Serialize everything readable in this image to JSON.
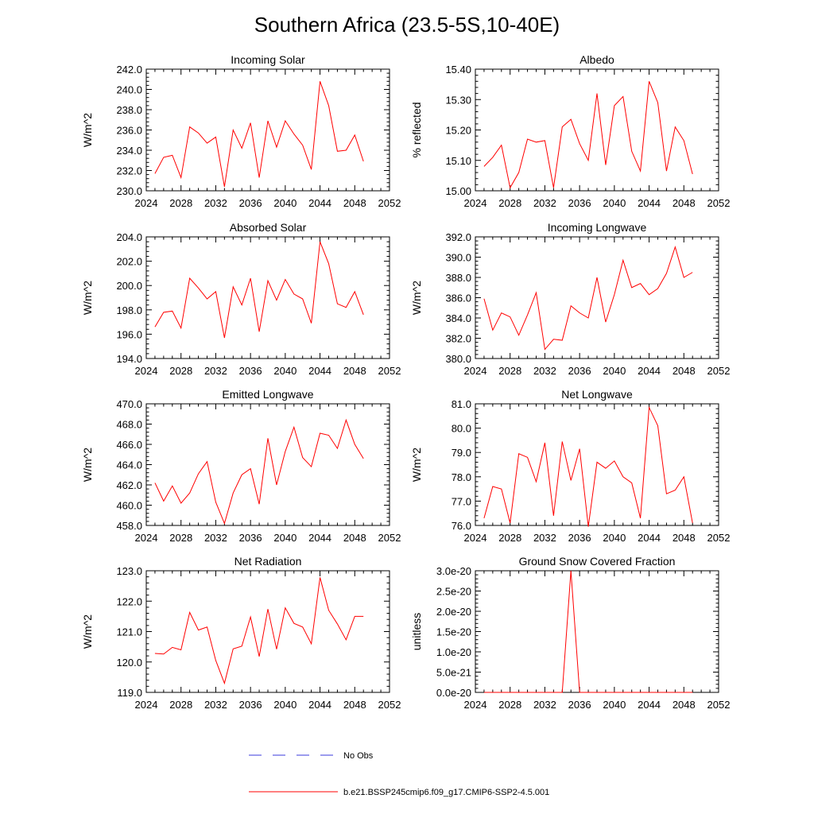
{
  "figure": {
    "title": "Southern Africa (23.5-5S,10-40E)",
    "legend": [
      {
        "label": "No Obs",
        "color": "#3a3adc",
        "style": "dashed"
      },
      {
        "label": "b.e21.BSSP245cmip6.f09_g17.CMIP6-SSP2-4.5.001",
        "color": "#ff0000",
        "style": "solid"
      }
    ]
  },
  "chart_data": [
    {
      "type": "line",
      "title": "Incoming Solar",
      "xlabel": "",
      "ylabel": "W/m^2",
      "xlim": [
        2024,
        2052
      ],
      "ylim": [
        230,
        242
      ],
      "xticks": [
        2024,
        2028,
        2032,
        2036,
        2040,
        2044,
        2048,
        2052
      ],
      "yticks": [
        230,
        232,
        234,
        236,
        238,
        240,
        242
      ],
      "ytick_labels": [
        "230.0",
        "232.0",
        "234.0",
        "236.0",
        "238.0",
        "240.0",
        "242.0"
      ],
      "series": [
        {
          "color": "#ff0000",
          "x": [
            2025,
            2026,
            2027,
            2028,
            2029,
            2030,
            2031,
            2032,
            2033,
            2034,
            2035,
            2036,
            2037,
            2038,
            2039,
            2040,
            2041,
            2042,
            2043,
            2044,
            2045,
            2046,
            2047,
            2048,
            2049
          ],
          "values": [
            231.7,
            233.3,
            233.5,
            231.3,
            236.3,
            235.7,
            234.7,
            235.3,
            230.4,
            236.0,
            234.2,
            236.7,
            231.3,
            236.9,
            234.3,
            236.9,
            235.6,
            234.5,
            232.1,
            240.8,
            238.4,
            233.9,
            234.0,
            235.5,
            232.9
          ]
        }
      ]
    },
    {
      "type": "line",
      "title": "Albedo",
      "xlabel": "",
      "ylabel": "% reflected",
      "xlim": [
        2024,
        2052
      ],
      "ylim": [
        15.0,
        15.4
      ],
      "xticks": [
        2024,
        2028,
        2032,
        2036,
        2040,
        2044,
        2048,
        2052
      ],
      "yticks": [
        15.0,
        15.1,
        15.2,
        15.3,
        15.4
      ],
      "ytick_labels": [
        "15.00",
        "15.10",
        "15.20",
        "15.30",
        "15.40"
      ],
      "series": [
        {
          "color": "#ff0000",
          "x": [
            2025,
            2026,
            2027,
            2028,
            2029,
            2030,
            2031,
            2032,
            2033,
            2034,
            2035,
            2036,
            2037,
            2038,
            2039,
            2040,
            2041,
            2042,
            2043,
            2044,
            2045,
            2046,
            2047,
            2048,
            2049
          ],
          "values": [
            15.08,
            15.11,
            15.15,
            15.01,
            15.06,
            15.17,
            15.16,
            15.165,
            15.01,
            15.21,
            15.235,
            15.155,
            15.1,
            15.32,
            15.085,
            15.28,
            15.31,
            15.13,
            15.065,
            15.36,
            15.29,
            15.065,
            15.21,
            15.165,
            15.055
          ]
        }
      ]
    },
    {
      "type": "line",
      "title": "Absorbed Solar",
      "xlabel": "",
      "ylabel": "W/m^2",
      "xlim": [
        2024,
        2052
      ],
      "ylim": [
        194,
        204
      ],
      "xticks": [
        2024,
        2028,
        2032,
        2036,
        2040,
        2044,
        2048,
        2052
      ],
      "yticks": [
        194,
        196,
        198,
        200,
        202,
        204
      ],
      "ytick_labels": [
        "194.0",
        "196.0",
        "198.0",
        "200.0",
        "202.0",
        "204.0"
      ],
      "series": [
        {
          "color": "#ff0000",
          "x": [
            2025,
            2026,
            2027,
            2028,
            2029,
            2030,
            2031,
            2032,
            2033,
            2034,
            2035,
            2036,
            2037,
            2038,
            2039,
            2040,
            2041,
            2042,
            2043,
            2044,
            2045,
            2046,
            2047,
            2048,
            2049
          ],
          "values": [
            196.6,
            197.8,
            197.9,
            196.5,
            200.6,
            199.8,
            198.9,
            199.5,
            195.7,
            199.9,
            198.4,
            200.6,
            196.2,
            200.4,
            198.8,
            200.5,
            199.3,
            198.9,
            196.9,
            203.6,
            201.8,
            198.5,
            198.2,
            199.5,
            197.6
          ]
        }
      ]
    },
    {
      "type": "line",
      "title": "Incoming Longwave",
      "xlabel": "",
      "ylabel": "W/m^2",
      "xlim": [
        2024,
        2052
      ],
      "ylim": [
        380,
        392
      ],
      "xticks": [
        2024,
        2028,
        2032,
        2036,
        2040,
        2044,
        2048,
        2052
      ],
      "yticks": [
        380,
        382,
        384,
        386,
        388,
        390,
        392
      ],
      "ytick_labels": [
        "380.0",
        "382.0",
        "384.0",
        "386.0",
        "388.0",
        "390.0",
        "392.0"
      ],
      "series": [
        {
          "color": "#ff0000",
          "x": [
            2025,
            2026,
            2027,
            2028,
            2029,
            2030,
            2031,
            2032,
            2033,
            2034,
            2035,
            2036,
            2037,
            2038,
            2039,
            2040,
            2041,
            2042,
            2043,
            2044,
            2045,
            2046,
            2047,
            2048,
            2049
          ],
          "values": [
            385.9,
            382.8,
            384.5,
            384.1,
            382.3,
            384.3,
            386.5,
            380.9,
            381.9,
            381.8,
            385.2,
            384.5,
            384.0,
            388.0,
            383.6,
            386.3,
            389.7,
            387.0,
            387.4,
            386.3,
            386.9,
            388.4,
            391.0,
            388.0,
            388.5
          ]
        }
      ]
    },
    {
      "type": "line",
      "title": "Emitted Longwave",
      "xlabel": "",
      "ylabel": "W/m^2",
      "xlim": [
        2024,
        2052
      ],
      "ylim": [
        458,
        470
      ],
      "xticks": [
        2024,
        2028,
        2032,
        2036,
        2040,
        2044,
        2048,
        2052
      ],
      "yticks": [
        458,
        460,
        462,
        464,
        466,
        468,
        470
      ],
      "ytick_labels": [
        "458.0",
        "460.0",
        "462.0",
        "464.0",
        "466.0",
        "468.0",
        "470.0"
      ],
      "series": [
        {
          "color": "#ff0000",
          "x": [
            2025,
            2026,
            2027,
            2028,
            2029,
            2030,
            2031,
            2032,
            2033,
            2034,
            2035,
            2036,
            2037,
            2038,
            2039,
            2040,
            2041,
            2042,
            2043,
            2044,
            2045,
            2046,
            2047,
            2048,
            2049
          ],
          "values": [
            462.2,
            460.4,
            461.9,
            460.2,
            461.2,
            463.1,
            464.3,
            460.3,
            458.2,
            461.2,
            463.0,
            463.6,
            460.1,
            466.6,
            462.0,
            465.3,
            467.7,
            464.7,
            463.8,
            467.1,
            466.9,
            465.6,
            468.4,
            466.0,
            464.6
          ]
        }
      ]
    },
    {
      "type": "line",
      "title": "Net Longwave",
      "xlabel": "",
      "ylabel": "W/m^2",
      "xlim": [
        2024,
        2052
      ],
      "ylim": [
        76,
        81
      ],
      "xticks": [
        2024,
        2028,
        2032,
        2036,
        2040,
        2044,
        2048,
        2052
      ],
      "yticks": [
        76,
        77,
        78,
        79,
        80,
        81
      ],
      "ytick_labels": [
        "76.0",
        "77.0",
        "78.0",
        "79.0",
        "80.0",
        "81.0"
      ],
      "series": [
        {
          "color": "#ff0000",
          "x": [
            2025,
            2026,
            2027,
            2028,
            2029,
            2030,
            2031,
            2032,
            2033,
            2034,
            2035,
            2036,
            2037,
            2038,
            2039,
            2040,
            2041,
            2042,
            2043,
            2044,
            2045,
            2046,
            2047,
            2048,
            2049
          ],
          "values": [
            76.3,
            77.6,
            77.5,
            76.1,
            78.95,
            78.8,
            77.8,
            79.4,
            76.4,
            79.45,
            77.85,
            79.15,
            75.95,
            78.6,
            78.35,
            78.65,
            78.0,
            77.75,
            76.3,
            80.85,
            80.1,
            77.3,
            77.45,
            78.0,
            76.1
          ]
        }
      ]
    },
    {
      "type": "line",
      "title": "Net Radiation",
      "xlabel": "",
      "ylabel": "W/m^2",
      "xlim": [
        2024,
        2052
      ],
      "ylim": [
        119,
        123
      ],
      "xticks": [
        2024,
        2028,
        2032,
        2036,
        2040,
        2044,
        2048,
        2052
      ],
      "yticks": [
        119,
        120,
        121,
        122,
        123
      ],
      "ytick_labels": [
        "119.0",
        "120.0",
        "121.0",
        "122.0",
        "123.0"
      ],
      "series": [
        {
          "color": "#ff0000",
          "x": [
            2025,
            2026,
            2027,
            2028,
            2029,
            2030,
            2031,
            2032,
            2033,
            2034,
            2035,
            2036,
            2037,
            2038,
            2039,
            2040,
            2041,
            2042,
            2043,
            2044,
            2045,
            2046,
            2047,
            2048,
            2049
          ],
          "values": [
            120.28,
            120.26,
            120.48,
            120.4,
            121.63,
            121.05,
            121.15,
            120.05,
            119.3,
            120.43,
            120.52,
            121.48,
            120.18,
            121.74,
            120.42,
            121.78,
            121.27,
            121.15,
            120.6,
            122.78,
            121.7,
            121.25,
            120.73,
            121.5,
            121.5
          ]
        }
      ]
    },
    {
      "type": "line",
      "title": "Ground Snow Covered Fraction",
      "xlabel": "",
      "ylabel": "unitless",
      "xlim": [
        2024,
        2052
      ],
      "ylim": [
        0,
        3e-20
      ],
      "xticks": [
        2024,
        2028,
        2032,
        2036,
        2040,
        2044,
        2048,
        2052
      ],
      "yticks": [
        0,
        5e-21,
        1e-20,
        1.5e-20,
        2e-20,
        2.5e-20,
        3e-20
      ],
      "ytick_labels": [
        "0.0e-20",
        "5.0e-21",
        "1.0e-20",
        "1.5e-20",
        "2.0e-20",
        "2.5e-20",
        "3.0e-20"
      ],
      "series": [
        {
          "color": "#ff0000",
          "x": [
            2025,
            2026,
            2027,
            2028,
            2029,
            2030,
            2031,
            2032,
            2033,
            2034,
            2035,
            2036,
            2037,
            2038,
            2039,
            2040,
            2041,
            2042,
            2043,
            2044,
            2045,
            2046,
            2047,
            2048,
            2049
          ],
          "values": [
            0,
            0,
            0,
            0,
            0,
            0,
            0,
            0,
            0,
            0,
            3e-20,
            0,
            0,
            0,
            0,
            0,
            0,
            0,
            0,
            0,
            0,
            0,
            0,
            0,
            0
          ]
        }
      ]
    }
  ]
}
